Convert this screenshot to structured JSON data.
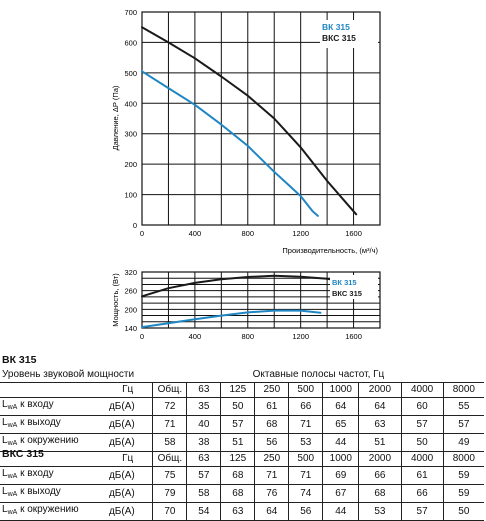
{
  "chart_data": [
    {
      "type": "line",
      "xlabel": "Производительность, (м³/ч)",
      "ylabel": "Давление, ΔP (Па)",
      "xlim": [
        0,
        1800
      ],
      "ylim": [
        0,
        700
      ],
      "xticks": [
        0,
        400,
        800,
        1200,
        1600
      ],
      "yticks": [
        0,
        100,
        200,
        300,
        400,
        500,
        600,
        700
      ],
      "grid": true,
      "legend_position": "top-right",
      "series": [
        {
          "name": "ВК 315",
          "color": "#1f86c4",
          "x": [
            0,
            200,
            400,
            600,
            800,
            1000,
            1100,
            1200,
            1290,
            1330
          ],
          "y": [
            505,
            450,
            395,
            330,
            260,
            175,
            135,
            95,
            45,
            30
          ]
        },
        {
          "name": "ВКС 315",
          "color": "#1a1a1a",
          "x": [
            0,
            200,
            400,
            600,
            800,
            1000,
            1200,
            1400,
            1550,
            1620
          ],
          "y": [
            650,
            600,
            548,
            488,
            425,
            350,
            255,
            145,
            70,
            35
          ]
        }
      ]
    },
    {
      "type": "line",
      "xlabel": "",
      "ylabel": "Мощность, (Вт)",
      "xlim": [
        0,
        1800
      ],
      "ylim": [
        140,
        320
      ],
      "xticks": [
        0,
        400,
        800,
        1200,
        1600
      ],
      "yticks": [
        140,
        200,
        260,
        320
      ],
      "grid": true,
      "legend_position": "right",
      "series": [
        {
          "name": "ВК 315",
          "color": "#1f86c4",
          "x": [
            0,
            200,
            400,
            600,
            800,
            1000,
            1200,
            1350
          ],
          "y": [
            143,
            155,
            168,
            180,
            190,
            196,
            196,
            189
          ]
        },
        {
          "name": "ВКС 315",
          "color": "#1a1a1a",
          "x": [
            0,
            200,
            400,
            600,
            800,
            1000,
            1200,
            1400,
            1620
          ],
          "y": [
            242,
            268,
            285,
            297,
            304,
            308,
            305,
            298,
            284
          ]
        }
      ]
    }
  ],
  "tables": [
    {
      "title": "ВК 315",
      "caption_left": "Уровень звуковой мощности",
      "caption_right": "Октавные полосы частот, Гц",
      "header": [
        "Гц",
        "Общ.",
        "63",
        "125",
        "250",
        "500",
        "1000",
        "2000",
        "4000",
        "8000"
      ],
      "rows": [
        {
          "label_main": "L",
          "label_sub": "wA",
          "label_rest": " к входу",
          "unit": "дБ(А)",
          "values": [
            "72",
            "35",
            "50",
            "61",
            "66",
            "64",
            "64",
            "60",
            "55"
          ]
        },
        {
          "label_main": "L",
          "label_sub": "wA",
          "label_rest": " к выходу",
          "unit": "дБ(А)",
          "values": [
            "71",
            "40",
            "57",
            "68",
            "71",
            "65",
            "63",
            "57",
            "57"
          ]
        },
        {
          "label_main": "L",
          "label_sub": "wA",
          "label_rest": " к окружению",
          "unit": "дБ(А)",
          "values": [
            "58",
            "38",
            "51",
            "56",
            "53",
            "44",
            "51",
            "50",
            "49"
          ]
        }
      ]
    },
    {
      "title": "ВКС 315",
      "header": [
        "Гц",
        "Общ.",
        "63",
        "125",
        "250",
        "500",
        "1000",
        "2000",
        "4000",
        "8000"
      ],
      "rows": [
        {
          "label_main": "L",
          "label_sub": "wA",
          "label_rest": " к входу",
          "unit": "дБ(А)",
          "values": [
            "75",
            "57",
            "68",
            "71",
            "71",
            "69",
            "66",
            "61",
            "59"
          ]
        },
        {
          "label_main": "L",
          "label_sub": "wA",
          "label_rest": " к выходу",
          "unit": "дБ(А)",
          "values": [
            "79",
            "58",
            "68",
            "76",
            "74",
            "67",
            "68",
            "66",
            "59"
          ]
        },
        {
          "label_main": "L",
          "label_sub": "wA",
          "label_rest": " к окружению",
          "unit": "дБ(А)",
          "values": [
            "70",
            "54",
            "63",
            "64",
            "56",
            "44",
            "53",
            "57",
            "50"
          ]
        }
      ]
    }
  ]
}
